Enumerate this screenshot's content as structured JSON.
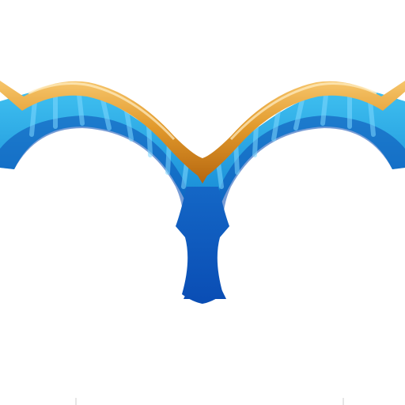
{
  "image": {
    "subject": "ornamental-arch-frame",
    "colors": {
      "background": "#ffffff",
      "gold_light": "#f6c56b",
      "gold": "#e29a2c",
      "gold_dark": "#b5660f",
      "blue_light": "#3fc0f0",
      "blue": "#1a8fd8",
      "blue_mid": "#1467c6",
      "blue_dark": "#0a4db4",
      "stripe": "#7fd8ff",
      "tick": "#cccccc"
    }
  }
}
